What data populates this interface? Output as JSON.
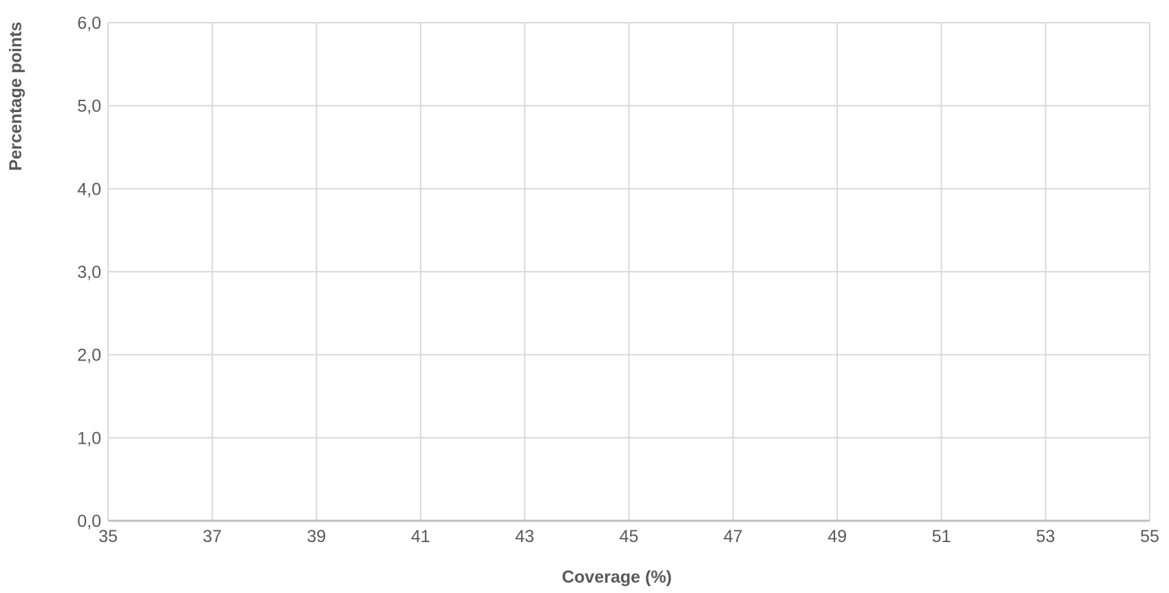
{
  "chart_data": {
    "type": "line",
    "title": "",
    "xlabel": "Coverage (%)",
    "ylabel": "Percentage points",
    "xlim": [
      35,
      55
    ],
    "ylim": [
      0,
      6
    ],
    "x_ticks": [
      "35",
      "37",
      "39",
      "41",
      "43",
      "45",
      "47",
      "49",
      "51",
      "53",
      "55"
    ],
    "y_ticks": [
      "0,0",
      "1,0",
      "2,0",
      "3,0",
      "4,0",
      "5,0",
      "6,0"
    ],
    "grid": true,
    "series": [],
    "colors": {
      "grid": "#d9d9d9",
      "axis": "#bfbfbf",
      "text": "#595959"
    }
  }
}
